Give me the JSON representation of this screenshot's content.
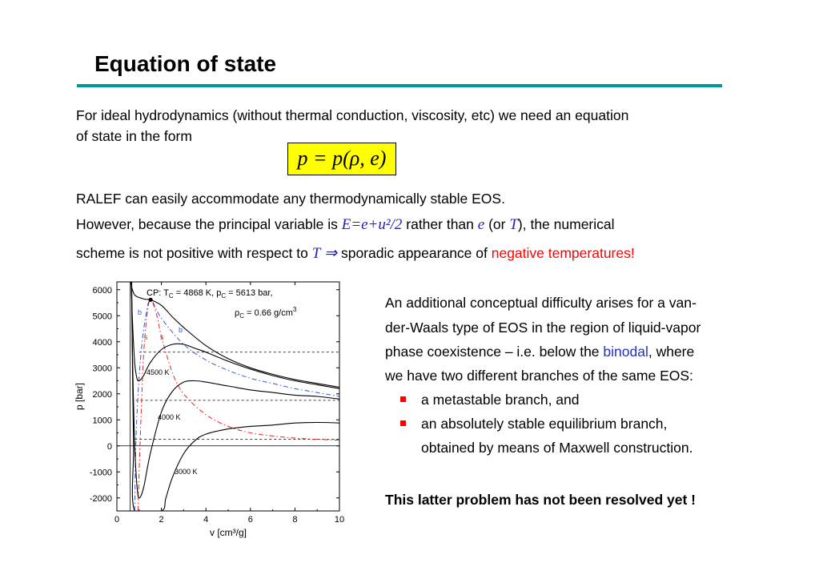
{
  "title": "Equation of state",
  "intro_line1": "For ideal hydrodynamics (without thermal conduction, viscosity, etc) we need an equation",
  "intro_line2": "of state in the form",
  "formula": "p = p(ρ, e)",
  "ralef_line": "RALEF can easily accommodate any thermodynamically stable EOS.",
  "however_pre": "However, because the principal variable is ",
  "however_math": "E=e+u²/2",
  "however_mid": " rather than ",
  "however_e": "e",
  "however_or": " (or ",
  "however_T": "T",
  "however_post": "), the numerical",
  "scheme_pre": "scheme is not positive with respect to ",
  "scheme_T": "T",
  "scheme_arrow": "⇒",
  "scheme_mid": " sporadic appearance of ",
  "scheme_red": "negative temperatures!",
  "right_lines": [
    "An additional conceptual difficulty arises for a van-",
    "der-Waals type of EOS in the region of liquid-vapor",
    "phase coexistence – i.e. below the ",
    "we have two different  branches of the same EOS:"
  ],
  "binodal": "binodal",
  "binodal_after": ", where",
  "bullets": [
    "a metastable branch, and",
    "an absolutely stable equilibrium branch,"
  ],
  "bullet2_cont": "obtained by means of Maxwell construction.",
  "conclusion": "This latter problem has not been resolved yet !",
  "colors": {
    "accent": "#009999",
    "highlight": "#ffff00",
    "red": "#ff0000",
    "blue": "#2233bb"
  },
  "chart_data": {
    "type": "line",
    "xlabel": "v [cm³/g]",
    "ylabel": "p [bar]",
    "xlim": [
      0,
      10
    ],
    "ylim": [
      -2500,
      6300
    ],
    "x_ticks": [
      "0",
      "2",
      "4",
      "6",
      "8",
      "10"
    ],
    "y_ticks": [
      "-2000",
      "-1000",
      "0",
      "1000",
      "2000",
      "3000",
      "4000",
      "5000",
      "6000"
    ],
    "annotations": {
      "cp_line1": "CP: T",
      "cp_sub1": "C",
      "cp_mid": " = 4868 K, p",
      "cp_sub2": "C",
      "cp_end": " = 5613 bar,",
      "rho_sym": "ρ",
      "rho_sub": "C",
      "rho_end": " = 0.66 g/cm",
      "rho_sup": "3",
      "label_4500": "4500 K",
      "label_4000": "4000 K",
      "label_3000": "3000 K",
      "label_b": "b",
      "label_s": "s"
    },
    "critical_point": {
      "v": 1.515,
      "p": 5613
    },
    "isotherms": [
      {
        "name": "4868 K",
        "points": [
          [
            0.62,
            6300
          ],
          [
            0.68,
            6050
          ],
          [
            0.8,
            5800
          ],
          [
            1.0,
            5700
          ],
          [
            1.3,
            5630
          ],
          [
            1.515,
            5613
          ],
          [
            2.0,
            5400
          ],
          [
            2.5,
            4950
          ],
          [
            3.0,
            4550
          ],
          [
            4.0,
            3850
          ],
          [
            5.0,
            3350
          ],
          [
            6.0,
            3000
          ],
          [
            7.0,
            2750
          ],
          [
            8.0,
            2550
          ],
          [
            9.0,
            2400
          ],
          [
            10.0,
            2250
          ]
        ]
      },
      {
        "name": "4500 K",
        "points": [
          [
            0.64,
            6300
          ],
          [
            0.7,
            4800
          ],
          [
            0.8,
            3200
          ],
          [
            0.9,
            2600
          ],
          [
            1.0,
            2500
          ],
          [
            1.2,
            2700
          ],
          [
            1.5,
            3200
          ],
          [
            2.0,
            3700
          ],
          [
            2.5,
            3900
          ],
          [
            3.0,
            3900
          ],
          [
            3.5,
            3750
          ],
          [
            4.0,
            3600
          ],
          [
            5.0,
            3250
          ],
          [
            6.0,
            2950
          ],
          [
            7.0,
            2700
          ],
          [
            8.0,
            2500
          ],
          [
            9.0,
            2350
          ],
          [
            10.0,
            2200
          ]
        ]
      },
      {
        "name": "4000 K",
        "points": [
          [
            0.66,
            6300
          ],
          [
            0.7,
            3500
          ],
          [
            0.8,
            0
          ],
          [
            0.9,
            -1500
          ],
          [
            1.0,
            -2000
          ],
          [
            1.2,
            -1600
          ],
          [
            1.5,
            -300
          ],
          [
            2.0,
            1300
          ],
          [
            2.5,
            2100
          ],
          [
            3.0,
            2450
          ],
          [
            3.5,
            2500
          ],
          [
            4.0,
            2450
          ],
          [
            5.0,
            2300
          ],
          [
            6.0,
            2150
          ],
          [
            7.0,
            2050
          ],
          [
            8.0,
            1950
          ],
          [
            9.0,
            1900
          ],
          [
            10.0,
            1800
          ]
        ]
      },
      {
        "name": "3000 K",
        "points": [
          [
            0.665,
            6300
          ],
          [
            0.7,
            3000
          ],
          [
            0.75,
            0
          ],
          [
            0.8,
            -2500
          ],
          [
            2.0,
            -2500
          ],
          [
            2.2,
            -2000
          ],
          [
            2.5,
            -1200
          ],
          [
            3.0,
            -300
          ],
          [
            3.5,
            200
          ],
          [
            4.0,
            450
          ],
          [
            5.0,
            650
          ],
          [
            6.0,
            750
          ],
          [
            7.0,
            800
          ],
          [
            8.0,
            880
          ],
          [
            9.0,
            900
          ],
          [
            10.0,
            880
          ]
        ]
      }
    ],
    "binodal": [
      [
        0.8,
        -2500
      ],
      [
        0.85,
        0
      ],
      [
        0.95,
        2000
      ],
      [
        1.1,
        3700
      ],
      [
        1.3,
        5000
      ],
      [
        1.515,
        5613
      ],
      [
        2.0,
        4900
      ],
      [
        3.0,
        3900
      ],
      [
        4.0,
        3300
      ],
      [
        5.0,
        2900
      ],
      [
        6.0,
        2600
      ],
      [
        7.0,
        2400
      ],
      [
        8.0,
        2200
      ],
      [
        9.0,
        2050
      ],
      [
        10.0,
        1900
      ]
    ],
    "spinodal": [
      [
        0.95,
        -2500
      ],
      [
        1.0,
        -1000
      ],
      [
        1.1,
        1500
      ],
      [
        1.2,
        3500
      ],
      [
        1.35,
        5000
      ],
      [
        1.515,
        5613
      ],
      [
        1.8,
        5000
      ],
      [
        2.0,
        4200
      ],
      [
        2.5,
        2800
      ],
      [
        3.0,
        2000
      ],
      [
        4.0,
        1200
      ],
      [
        5.0,
        750
      ],
      [
        6.0,
        500
      ],
      [
        7.0,
        380
      ],
      [
        8.0,
        300
      ],
      [
        9.0,
        250
      ],
      [
        10.0,
        220
      ]
    ],
    "maxwell_levels": [
      {
        "T": "4500 K",
        "p": 3600,
        "v_start": 1.0,
        "v_end": 10
      },
      {
        "T": "4000 K",
        "p": 1750,
        "v_start": 0.85,
        "v_end": 10
      },
      {
        "T": "3000 K",
        "p": 250,
        "v_start": 0.8,
        "v_end": 10
      }
    ],
    "grid": false
  }
}
